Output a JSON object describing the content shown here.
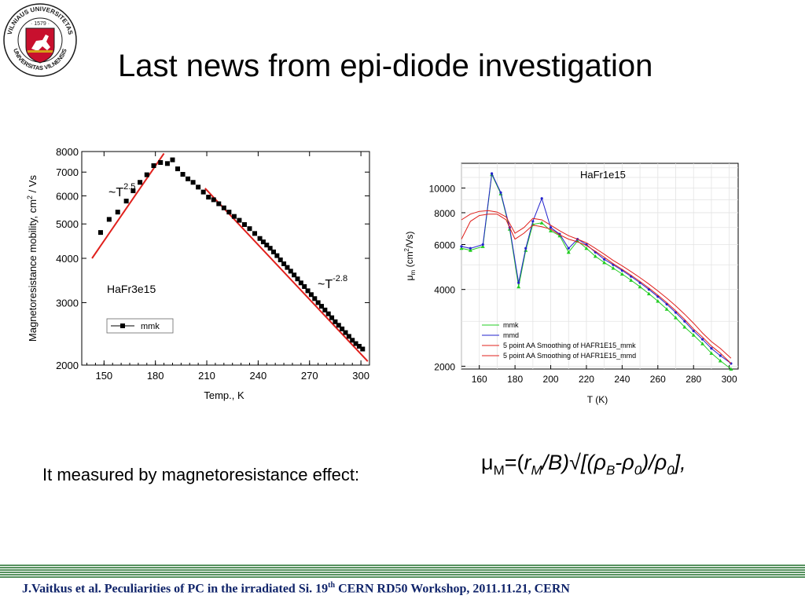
{
  "slide": {
    "title": "Last news from epi-diode investigation",
    "caption": "It measured by magnetoresistance effect:",
    "footer": {
      "pre": "J.Vaitkus et al. Peculiarities of PC in the irradiated Si. 19",
      "sup": "th",
      "post": " CERN RD50 Workshop, 2011.11.21, CERN"
    },
    "formula": {
      "mu": "μ",
      "mu_sub": "M",
      "eq": "=(",
      "r": "r",
      "r_sub": "M",
      "mid": "/B)√[(",
      "rho": "ρ",
      "rho_sub_b": "B",
      "dash": "-",
      "rho_sub_0": "0",
      "close": ")/",
      "rho_sub_0b": "0",
      "end": "],"
    },
    "logo": {
      "text_upper": "VILNIAUS UNIVERSITETAS",
      "text_year": "· 1579 ·",
      "text_lower": "UNIVERSITAS VILNENSIS",
      "colors": {
        "ring": "#1a1a1a",
        "shield": "#c8102e",
        "knight": "#ffffff"
      }
    }
  },
  "chart_data": [
    {
      "type": "scatter",
      "annotation_sample": "HaFr3e15",
      "xlabel": "Temp., K",
      "ylabel": "Magnetoresistance mobility, cm² / Vs",
      "ylabel_parts": {
        "main": "Magnetoresistance mobility, cm",
        "sup": "2",
        "tail": " / Vs"
      },
      "x_ticks": [
        150,
        180,
        210,
        240,
        270,
        300
      ],
      "y_ticks": [
        2000,
        3000,
        4000,
        5000,
        6000,
        7000,
        8000
      ],
      "y_scale": "log",
      "xlim": [
        137,
        305
      ],
      "ylim": [
        2000,
        8000
      ],
      "legend": {
        "label": "mmk",
        "placement": "lower-left"
      },
      "series": [
        {
          "name": "mmk",
          "color": "#000000",
          "marker": "square",
          "x": [
            148,
            153,
            158,
            163,
            167,
            171,
            175,
            179,
            183,
            187,
            190,
            193,
            196,
            199,
            202,
            205,
            208,
            211,
            214,
            217,
            220,
            223,
            226,
            229,
            232,
            235,
            238,
            241,
            243,
            245,
            247,
            249,
            251,
            253,
            255,
            257,
            259,
            261,
            263,
            265,
            267,
            269,
            271,
            273,
            275,
            277,
            279,
            281,
            283,
            285,
            287,
            289,
            291,
            293,
            295,
            297,
            299,
            301
          ],
          "y": [
            4730,
            5150,
            5400,
            5800,
            6200,
            6550,
            6880,
            7300,
            7450,
            7400,
            7580,
            7150,
            6900,
            6700,
            6550,
            6350,
            6150,
            5950,
            5850,
            5700,
            5550,
            5400,
            5250,
            5120,
            4980,
            4850,
            4700,
            4550,
            4450,
            4360,
            4270,
            4170,
            4070,
            3960,
            3860,
            3770,
            3680,
            3590,
            3500,
            3410,
            3330,
            3240,
            3160,
            3080,
            3000,
            2930,
            2860,
            2790,
            2720,
            2650,
            2590,
            2530,
            2470,
            2410,
            2350,
            2300,
            2260,
            2220
          ]
        }
      ],
      "fit_lines": [
        {
          "label": "~T",
          "exponent": "2.5",
          "color": "#e0201c",
          "x": [
            143,
            185
          ],
          "y": [
            4000,
            7900
          ]
        },
        {
          "label": "~T",
          "exponent": "-2.8",
          "color": "#e0201c",
          "x": [
            209,
            304
          ],
          "y": [
            6300,
            2050
          ]
        }
      ]
    },
    {
      "type": "line",
      "annotation_sample": "HaFr1e15",
      "xlabel": "T (K)",
      "ylabel": "μm (cm²/Vs)",
      "ylabel_parts": {
        "mu": "μ",
        "sub": "m",
        "mid": " (cm",
        "sup": "2",
        "tail": "/Vs)"
      },
      "x_ticks": [
        160,
        180,
        200,
        220,
        240,
        260,
        280,
        300
      ],
      "y_ticks": [
        2000,
        4000,
        6000,
        8000,
        10000
      ],
      "y_scale": "log",
      "xlim": [
        150,
        305
      ],
      "ylim": [
        1950,
        12500
      ],
      "grid": true,
      "legend_placement": "lower-left",
      "series": [
        {
          "name": "mmk",
          "color": "#22cc22",
          "marker": "triangle",
          "x": [
            150,
            155,
            162,
            167,
            172,
            177,
            182,
            186,
            190,
            195,
            200,
            205,
            210,
            215,
            220,
            225,
            230,
            235,
            240,
            245,
            250,
            255,
            260,
            265,
            270,
            275,
            280,
            285,
            290,
            295,
            301
          ],
          "y": [
            5800,
            5700,
            5900,
            11300,
            9500,
            6900,
            4100,
            5700,
            7200,
            7300,
            6800,
            6500,
            5600,
            6200,
            5800,
            5400,
            5100,
            4850,
            4600,
            4350,
            4100,
            3850,
            3600,
            3350,
            3100,
            2850,
            2650,
            2450,
            2250,
            2100,
            1950
          ]
        },
        {
          "name": "mmd",
          "color": "#2222cc",
          "marker": "dot",
          "x": [
            150,
            155,
            162,
            167,
            172,
            177,
            182,
            186,
            190,
            195,
            200,
            205,
            210,
            215,
            220,
            225,
            230,
            235,
            240,
            245,
            250,
            255,
            260,
            265,
            270,
            275,
            280,
            285,
            290,
            295,
            301
          ],
          "y": [
            5900,
            5800,
            6000,
            11400,
            9600,
            7000,
            4250,
            5800,
            7400,
            9100,
            7000,
            6600,
            5800,
            6300,
            6000,
            5600,
            5250,
            5000,
            4750,
            4500,
            4250,
            4000,
            3750,
            3500,
            3250,
            3000,
            2750,
            2550,
            2350,
            2200,
            2050
          ]
        },
        {
          "name": "5 point AA Smoothing of HAFR1E15_mmk",
          "color": "#e0201c",
          "x": [
            150,
            155,
            160,
            165,
            170,
            175,
            180,
            185,
            190,
            195,
            200,
            205,
            210,
            215,
            220,
            225,
            230,
            235,
            240,
            245,
            250,
            255,
            260,
            265,
            270,
            275,
            280,
            285,
            290,
            295,
            301
          ],
          "y": [
            6300,
            7400,
            7800,
            7900,
            7900,
            7500,
            6300,
            6650,
            7150,
            7050,
            6900,
            6550,
            6300,
            6150,
            5950,
            5650,
            5350,
            5050,
            4800,
            4550,
            4300,
            4050,
            3800,
            3550,
            3300,
            3050,
            2800,
            2600,
            2400,
            2250,
            2050
          ]
        },
        {
          "name": "5 point AA Smoothing of HAFR1E15_mmd",
          "color": "#e0201c",
          "x": [
            150,
            155,
            160,
            165,
            170,
            175,
            180,
            185,
            190,
            195,
            200,
            205,
            210,
            215,
            220,
            225,
            230,
            235,
            240,
            245,
            250,
            255,
            260,
            265,
            270,
            275,
            280,
            285,
            290,
            295,
            301
          ],
          "y": [
            7500,
            7900,
            8100,
            8150,
            8050,
            7700,
            6650,
            7000,
            7600,
            7500,
            7150,
            6800,
            6500,
            6300,
            6100,
            5800,
            5500,
            5200,
            4950,
            4700,
            4450,
            4200,
            3950,
            3700,
            3450,
            3200,
            2950,
            2700,
            2500,
            2350,
            2150
          ]
        }
      ]
    }
  ]
}
